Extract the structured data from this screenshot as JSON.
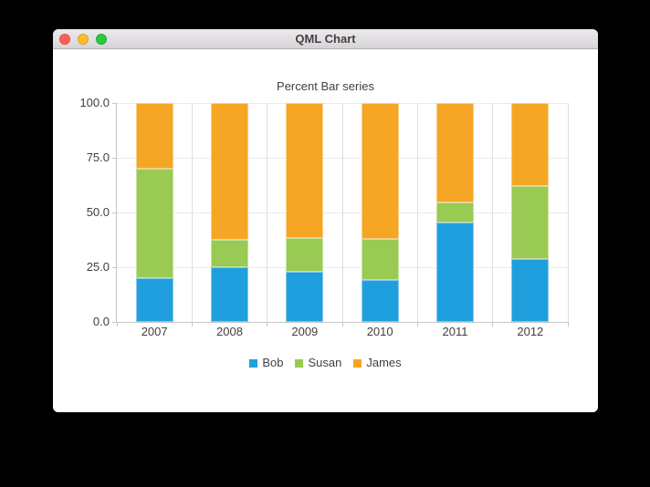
{
  "window": {
    "title": "QML Chart"
  },
  "chart_data": {
    "type": "bar",
    "variant": "percent-stacked",
    "title": "Percent Bar series",
    "categories": [
      "2007",
      "2008",
      "2009",
      "2010",
      "2011",
      "2012"
    ],
    "series": [
      {
        "name": "Bob",
        "color": "#209fdf",
        "values": [
          20.0,
          25.0,
          23.08,
          19.05,
          45.45,
          28.57
        ]
      },
      {
        "name": "Susan",
        "color": "#99ca53",
        "values": [
          50.0,
          12.5,
          15.38,
          19.05,
          9.09,
          33.33
        ]
      },
      {
        "name": "James",
        "color": "#f6a625",
        "values": [
          30.0,
          62.5,
          61.54,
          61.9,
          45.45,
          38.1
        ]
      }
    ],
    "y_tick_labels": [
      "100.0",
      "75.0",
      "50.0",
      "25.0",
      "0.0"
    ],
    "ylim": [
      0,
      100
    ],
    "grid": true,
    "legend_position": "bottom"
  },
  "colors": {
    "grid_line_h": "#ebebeb",
    "grid_line_v": "#dedede",
    "axis_line": "#c6c6c6",
    "label_text": "#404044",
    "traffic_red": "#ff5f57",
    "traffic_yellow": "#febc2e",
    "traffic_green": "#28c840"
  }
}
